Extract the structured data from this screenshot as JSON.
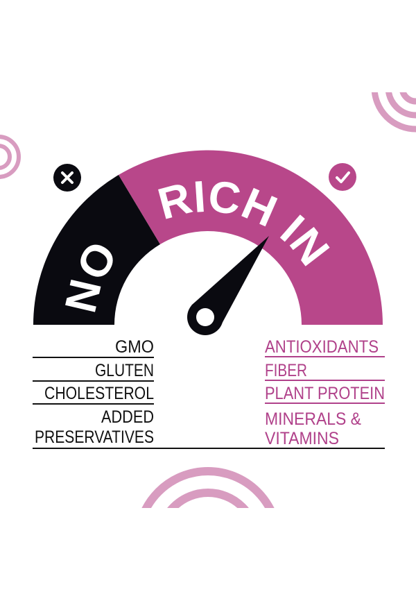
{
  "gauge": {
    "no_label": "NO",
    "rich_label": "RICH IN",
    "no_icon": "x-circle-icon",
    "rich_icon": "check-circle-icon",
    "colors": {
      "no": "#0a0a10",
      "rich": "#b8478a",
      "decor": "#d89cc0"
    }
  },
  "no_list": {
    "items": [
      "GMO",
      "GLUTEN",
      "CHOLESTEROL",
      "ADDED",
      "PRESERVATIVES"
    ]
  },
  "rich_list": {
    "items": [
      "ANTIOXIDANTS",
      "FIBER",
      "PLANT PROTEIN",
      "MINERALS &",
      "VITAMINS"
    ]
  }
}
